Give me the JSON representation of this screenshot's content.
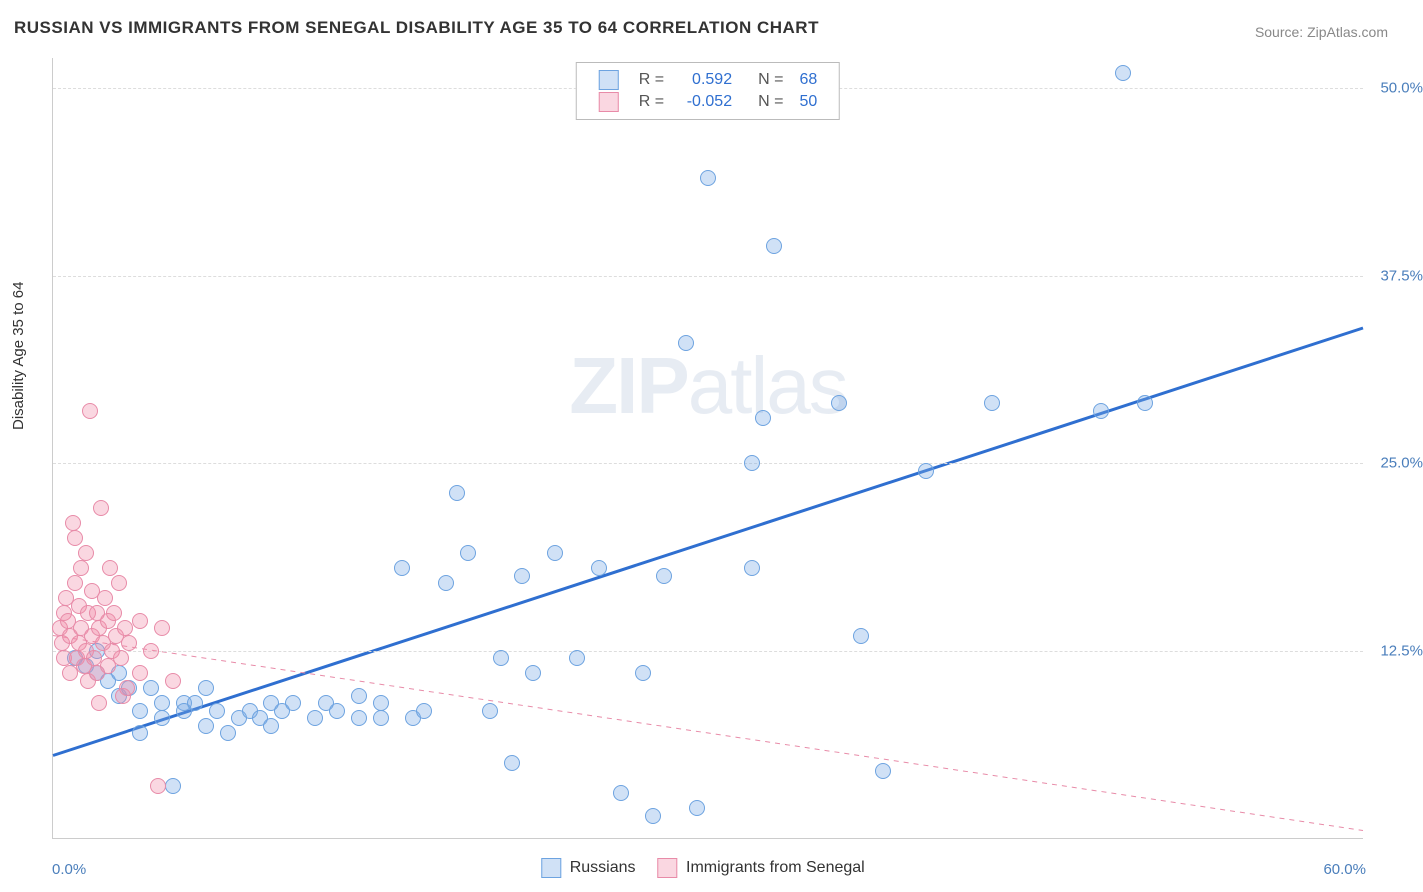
{
  "title": "RUSSIAN VS IMMIGRANTS FROM SENEGAL DISABILITY AGE 35 TO 64 CORRELATION CHART",
  "source": "Source: ZipAtlas.com",
  "ylabel": "Disability Age 35 to 64",
  "watermark_a": "ZIP",
  "watermark_b": "atlas",
  "chart": {
    "type": "scatter",
    "xlim": [
      0,
      60
    ],
    "ylim": [
      0,
      52
    ],
    "y_ticks": [
      12.5,
      25.0,
      37.5,
      50.0
    ],
    "y_tick_labels": [
      "12.5%",
      "25.0%",
      "37.5%",
      "50.0%"
    ],
    "x_tick_left": "0.0%",
    "x_tick_right": "60.0%",
    "background_color": "#ffffff",
    "grid_color": "#dddddd",
    "axis_color": "#cccccc",
    "axis_label_color": "#4a7ebb",
    "point_radius": 7,
    "series": [
      {
        "name": "Russians",
        "fill": "rgba(120,170,230,0.35)",
        "stroke": "#6da3e0",
        "trend": {
          "x1": 0,
          "y1": 5.5,
          "x2": 60,
          "y2": 34.0,
          "color": "#2f6fd0",
          "width": 3,
          "dash": "none"
        },
        "R": "0.592",
        "N": "68",
        "points": [
          [
            1,
            12
          ],
          [
            1.5,
            11.5
          ],
          [
            2,
            11
          ],
          [
            2,
            12.5
          ],
          [
            2.5,
            10.5
          ],
          [
            3,
            11
          ],
          [
            3,
            9.5
          ],
          [
            3.5,
            10
          ],
          [
            4,
            8.5
          ],
          [
            4,
            7
          ],
          [
            4.5,
            10
          ],
          [
            5,
            8
          ],
          [
            5,
            9
          ],
          [
            5.5,
            3.5
          ],
          [
            6,
            9
          ],
          [
            6,
            8.5
          ],
          [
            6.5,
            9
          ],
          [
            7,
            10
          ],
          [
            7,
            7.5
          ],
          [
            7.5,
            8.5
          ],
          [
            8,
            7
          ],
          [
            8.5,
            8
          ],
          [
            9,
            8.5
          ],
          [
            9.5,
            8
          ],
          [
            10,
            9
          ],
          [
            10,
            7.5
          ],
          [
            10.5,
            8.5
          ],
          [
            11,
            9
          ],
          [
            12,
            8
          ],
          [
            12.5,
            9
          ],
          [
            13,
            8.5
          ],
          [
            14,
            8
          ],
          [
            14,
            9.5
          ],
          [
            15,
            8
          ],
          [
            15,
            9
          ],
          [
            16,
            18
          ],
          [
            16.5,
            8
          ],
          [
            17,
            8.5
          ],
          [
            18,
            17
          ],
          [
            18.5,
            23
          ],
          [
            19,
            19
          ],
          [
            20,
            8.5
          ],
          [
            20.5,
            12
          ],
          [
            21,
            5
          ],
          [
            21.5,
            17.5
          ],
          [
            22,
            11
          ],
          [
            23,
            19
          ],
          [
            24,
            12
          ],
          [
            25,
            18
          ],
          [
            26,
            3
          ],
          [
            27,
            11
          ],
          [
            27.5,
            1.5
          ],
          [
            28,
            17.5
          ],
          [
            29,
            33
          ],
          [
            29.5,
            2
          ],
          [
            30,
            44
          ],
          [
            32,
            25
          ],
          [
            32,
            18
          ],
          [
            32.5,
            28
          ],
          [
            33,
            39.5
          ],
          [
            36,
            29
          ],
          [
            37,
            13.5
          ],
          [
            38,
            4.5
          ],
          [
            40,
            24.5
          ],
          [
            43,
            29
          ],
          [
            48,
            28.5
          ],
          [
            49,
            51
          ],
          [
            50,
            29
          ]
        ]
      },
      {
        "name": "Immigrants from Senegal",
        "fill": "rgba(240,140,170,0.35)",
        "stroke": "#e88ba8",
        "trend": {
          "x1": 0,
          "y1": 13.5,
          "x2": 60,
          "y2": 0.5,
          "color": "#e88ba8",
          "width": 1,
          "dash": "5,5"
        },
        "R": "-0.052",
        "N": "50",
        "points": [
          [
            0.3,
            14
          ],
          [
            0.4,
            13
          ],
          [
            0.5,
            15
          ],
          [
            0.5,
            12
          ],
          [
            0.6,
            16
          ],
          [
            0.7,
            14.5
          ],
          [
            0.8,
            13.5
          ],
          [
            0.8,
            11
          ],
          [
            0.9,
            21
          ],
          [
            1.0,
            20
          ],
          [
            1.0,
            17
          ],
          [
            1.1,
            12
          ],
          [
            1.2,
            15.5
          ],
          [
            1.2,
            13
          ],
          [
            1.3,
            18
          ],
          [
            1.3,
            14
          ],
          [
            1.4,
            11.5
          ],
          [
            1.5,
            19
          ],
          [
            1.5,
            12.5
          ],
          [
            1.6,
            15
          ],
          [
            1.6,
            10.5
          ],
          [
            1.7,
            28.5
          ],
          [
            1.8,
            13.5
          ],
          [
            1.8,
            16.5
          ],
          [
            1.9,
            12
          ],
          [
            2.0,
            15
          ],
          [
            2.0,
            11
          ],
          [
            2.1,
            14
          ],
          [
            2.1,
            9
          ],
          [
            2.2,
            22
          ],
          [
            2.3,
            13
          ],
          [
            2.4,
            16
          ],
          [
            2.5,
            14.5
          ],
          [
            2.5,
            11.5
          ],
          [
            2.6,
            18
          ],
          [
            2.7,
            12.5
          ],
          [
            2.8,
            15
          ],
          [
            2.9,
            13.5
          ],
          [
            3.0,
            17
          ],
          [
            3.1,
            12
          ],
          [
            3.2,
            9.5
          ],
          [
            3.3,
            14
          ],
          [
            3.4,
            10
          ],
          [
            3.5,
            13
          ],
          [
            4.0,
            14.5
          ],
          [
            4.0,
            11
          ],
          [
            4.5,
            12.5
          ],
          [
            4.8,
            3.5
          ],
          [
            5.0,
            14
          ],
          [
            5.5,
            10.5
          ]
        ]
      }
    ]
  },
  "legend_top": {
    "rows": [
      {
        "swatch_fill": "rgba(120,170,230,0.35)",
        "swatch_stroke": "#6da3e0",
        "R_label": "R =",
        "R_val": "0.592",
        "N_label": "N =",
        "N_val": "68"
      },
      {
        "swatch_fill": "rgba(240,140,170,0.35)",
        "swatch_stroke": "#e88ba8",
        "R_label": "R =",
        "R_val": "-0.052",
        "N_label": "N =",
        "N_val": "50"
      }
    ],
    "value_color": "#2f6fd0",
    "label_color": "#555555"
  },
  "legend_bottom": {
    "items": [
      {
        "swatch_fill": "rgba(120,170,230,0.35)",
        "swatch_stroke": "#6da3e0",
        "label": "Russians"
      },
      {
        "swatch_fill": "rgba(240,140,170,0.35)",
        "swatch_stroke": "#e88ba8",
        "label": "Immigrants from Senegal"
      }
    ]
  }
}
